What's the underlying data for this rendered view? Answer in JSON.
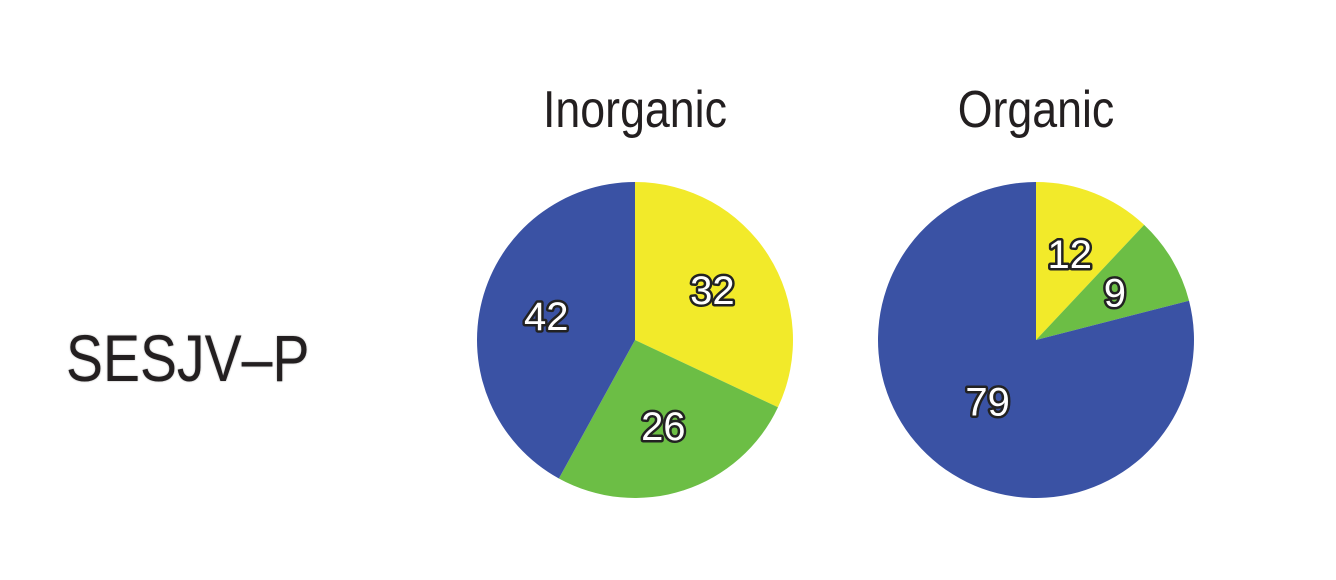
{
  "row_label": "SESJV–P",
  "colors": {
    "yellow": "#f2ea2a",
    "green": "#6cbe45",
    "blue": "#3a52a4"
  },
  "chart_data": [
    {
      "type": "pie",
      "title": "Inorganic",
      "slices": [
        {
          "value": 32,
          "label": "32",
          "color": "#f2ea2a"
        },
        {
          "value": 26,
          "label": "26",
          "color": "#6cbe45"
        },
        {
          "value": 42,
          "label": "42",
          "color": "#3a52a4"
        }
      ]
    },
    {
      "type": "pie",
      "title": "Organic",
      "slices": [
        {
          "value": 12,
          "label": "12",
          "color": "#f2ea2a"
        },
        {
          "value": 9,
          "label": "9",
          "color": "#6cbe45"
        },
        {
          "value": 79,
          "label": "79",
          "color": "#3a52a4"
        }
      ]
    }
  ]
}
